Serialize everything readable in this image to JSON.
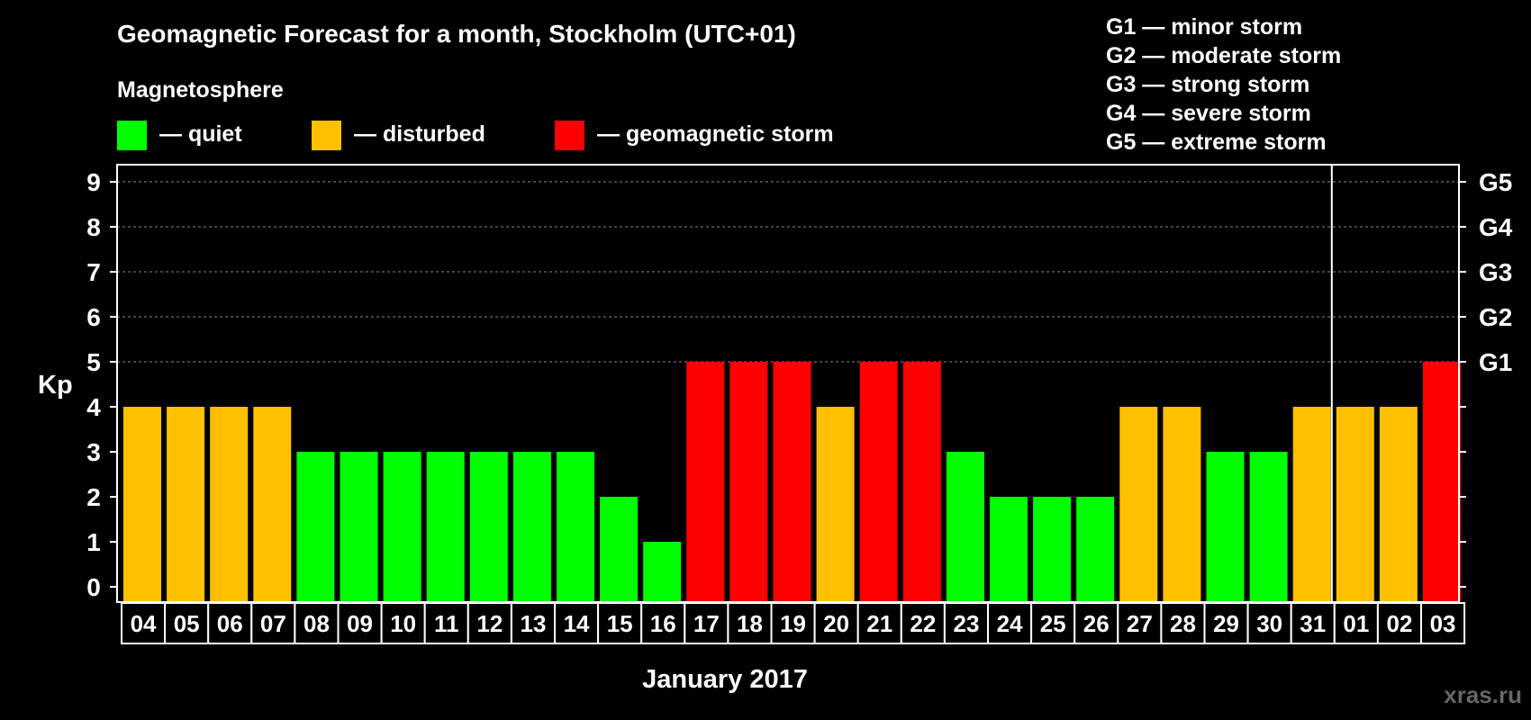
{
  "chart_data": {
    "type": "bar",
    "title": "Geomagnetic Forecast for a month, Stockholm (UTC+01)",
    "xlabel": "January 2017",
    "ylabel": "Kp",
    "ylim": [
      0,
      9
    ],
    "yticks": [
      "0",
      "1",
      "2",
      "3",
      "4",
      "5",
      "6",
      "7",
      "8",
      "9"
    ],
    "right_axis_labels": [
      {
        "kp": 5,
        "label": "G1"
      },
      {
        "kp": 6,
        "label": "G2"
      },
      {
        "kp": 7,
        "label": "G3"
      },
      {
        "kp": 8,
        "label": "G4"
      },
      {
        "kp": 9,
        "label": "G5"
      }
    ],
    "categories": [
      "04",
      "05",
      "06",
      "07",
      "08",
      "09",
      "10",
      "11",
      "12",
      "13",
      "14",
      "15",
      "16",
      "17",
      "18",
      "19",
      "20",
      "21",
      "22",
      "23",
      "24",
      "25",
      "26",
      "27",
      "28",
      "29",
      "30",
      "31",
      "01",
      "02",
      "03"
    ],
    "values": [
      4,
      4,
      4,
      4,
      3,
      3,
      3,
      3,
      3,
      3,
      3,
      2,
      1,
      5,
      5,
      5,
      4,
      5,
      5,
      3,
      2,
      2,
      2,
      4,
      4,
      3,
      3,
      4,
      4,
      4,
      5
    ],
    "month_break_after_index": 27,
    "legend": {
      "heading": "Magnetosphere",
      "items": [
        {
          "label": "— quiet",
          "color": "#00ff00"
        },
        {
          "label": "— disturbed",
          "color": "#ffc000"
        },
        {
          "label": "— geomagnetic storm",
          "color": "#ff0000"
        }
      ]
    },
    "storm_scale": [
      "G1 — minor storm",
      "G2 — moderate storm",
      "G3 — strong storm",
      "G4 — severe storm",
      "G5 — extreme storm"
    ],
    "gridlines": true
  },
  "watermark": "xras.ru",
  "colors": {
    "quiet": "#00ff00",
    "disturbed": "#ffc000",
    "storm": "#ff0000",
    "background": "#000000",
    "grid": "#888888"
  }
}
